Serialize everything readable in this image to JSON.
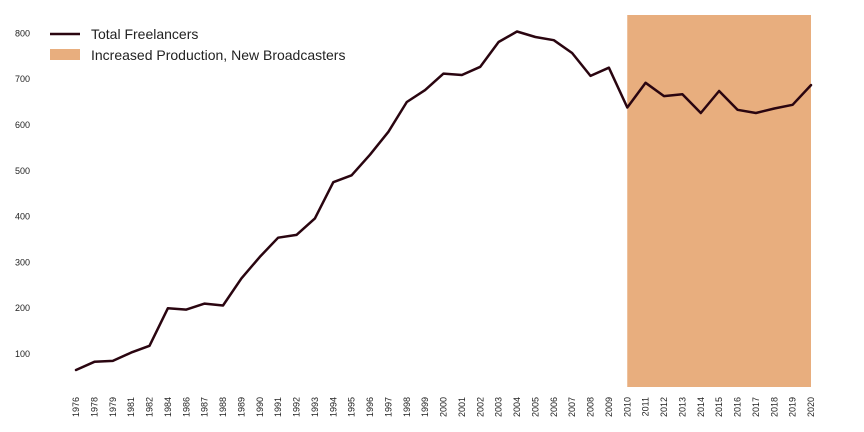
{
  "chart_data": {
    "type": "line",
    "title": "",
    "xlabel": "",
    "ylabel": "",
    "categories": [
      "1976",
      "1978",
      "1979",
      "1981",
      "1982",
      "1984",
      "1986",
      "1987",
      "1988",
      "1989",
      "1990",
      "1991",
      "1992",
      "1993",
      "1994",
      "1995",
      "1996",
      "1997",
      "1998",
      "1999",
      "2000",
      "2001",
      "2002",
      "2003",
      "2004",
      "2005",
      "2006",
      "2007",
      "2008",
      "2009",
      "2010",
      "2011",
      "2012",
      "2013",
      "2014",
      "2015",
      "2016",
      "2017",
      "2018",
      "2019",
      "2020"
    ],
    "series": [
      {
        "name": "Total Freelancers",
        "color": "#2a0510",
        "values": [
          65,
          83,
          85,
          103,
          118,
          200,
          197,
          210,
          206,
          265,
          312,
          354,
          360,
          396,
          475,
          490,
          535,
          585,
          650,
          676,
          712,
          709,
          727,
          781,
          804,
          792,
          785,
          757,
          707,
          725,
          638,
          692,
          663,
          667,
          626,
          674,
          633,
          626,
          636,
          644,
          687
        ]
      }
    ],
    "shaded_region": {
      "label": "Increased Production, New Broadcasters",
      "start": "2010",
      "end": "2020",
      "color": "#e8ae7e"
    },
    "yticks": [
      100,
      200,
      300,
      400,
      500,
      600,
      700,
      800
    ],
    "ylim": [
      28,
      840
    ],
    "grid": false,
    "legend_position": "top-left",
    "xtick_rotation": "vertical"
  }
}
